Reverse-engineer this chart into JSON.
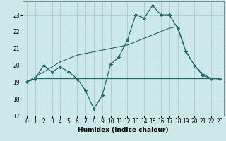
{
  "xlabel": "Humidex (Indice chaleur)",
  "bg_color": "#cce8e8",
  "grid_color": "#aacccc",
  "line_color": "#1a6b6b",
  "xlim": [
    -0.5,
    23.5
  ],
  "ylim": [
    17,
    23.8
  ],
  "yticks": [
    17,
    18,
    19,
    20,
    21,
    22,
    23
  ],
  "xticks": [
    0,
    1,
    2,
    3,
    4,
    5,
    6,
    7,
    8,
    9,
    10,
    11,
    12,
    13,
    14,
    15,
    16,
    17,
    18,
    19,
    20,
    21,
    22,
    23
  ],
  "line1_x": [
    0,
    1,
    2,
    3,
    4,
    5,
    6,
    7,
    8,
    9,
    10,
    11,
    12,
    13,
    14,
    15,
    16,
    17,
    18,
    19,
    20,
    21,
    22,
    23
  ],
  "line1_y": [
    19.0,
    19.2,
    20.0,
    19.6,
    19.9,
    19.6,
    19.2,
    18.5,
    17.4,
    18.2,
    20.05,
    20.5,
    21.5,
    23.0,
    22.8,
    23.55,
    23.0,
    23.0,
    22.2,
    20.8,
    20.0,
    19.4,
    19.2,
    19.2
  ],
  "line2_x": [
    0,
    1,
    2,
    3,
    4,
    5,
    6,
    7,
    8,
    9,
    10,
    11,
    12,
    13,
    14,
    15,
    16,
    17,
    18,
    19,
    20,
    21,
    22,
    23
  ],
  "line2_y": [
    19.0,
    19.2,
    19.2,
    19.2,
    19.2,
    19.2,
    19.2,
    19.2,
    19.2,
    19.2,
    19.2,
    19.2,
    19.2,
    19.2,
    19.2,
    19.2,
    19.2,
    19.2,
    19.2,
    19.2,
    19.2,
    19.2,
    19.2,
    19.2
  ],
  "line3_x": [
    0,
    1,
    2,
    3,
    4,
    5,
    6,
    7,
    8,
    9,
    10,
    11,
    12,
    13,
    14,
    15,
    16,
    17,
    18,
    19,
    20,
    21,
    22,
    23
  ],
  "line3_y": [
    19.0,
    19.3,
    19.6,
    19.9,
    20.2,
    20.4,
    20.6,
    20.7,
    20.8,
    20.9,
    21.0,
    21.1,
    21.2,
    21.4,
    21.6,
    21.8,
    22.0,
    22.2,
    22.3,
    20.8,
    20.0,
    19.5,
    19.2,
    19.2
  ]
}
